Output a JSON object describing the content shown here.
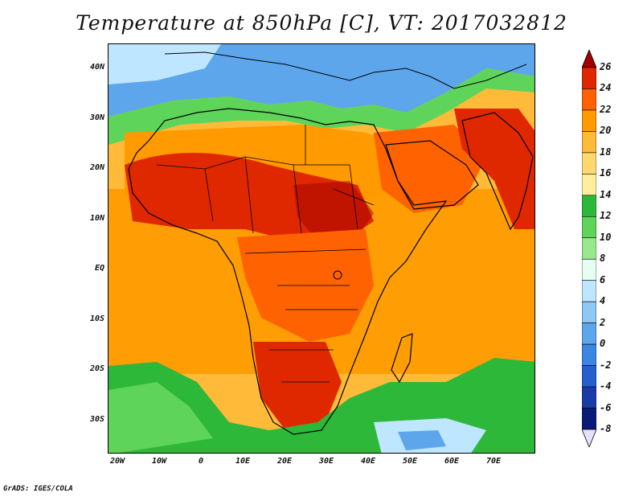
{
  "title": "Temperature at 850hPa [C], VT: 2017032812",
  "credit": "GrADS: IGES/COLA",
  "lat_labels": [
    "40N",
    "30N",
    "20N",
    "10N",
    "EQ",
    "10S",
    "20S",
    "30S"
  ],
  "lon_labels": [
    "20W",
    "10W",
    "0",
    "10E",
    "20E",
    "30E",
    "40E",
    "50E",
    "60E",
    "70E"
  ],
  "colorbar": {
    "labels": [
      "26",
      "24",
      "22",
      "20",
      "18",
      "16",
      "14",
      "12",
      "10",
      "8",
      "6",
      "4",
      "2",
      "0",
      "-2",
      "-4",
      "-6",
      "-8"
    ],
    "colors": [
      "#a00000",
      "#e02800",
      "#ff6200",
      "#ff9a00",
      "#ffba3a",
      "#ffd870",
      "#ffee9e",
      "#2eb83a",
      "#5ed45a",
      "#9ae88e",
      "#e6fff0",
      "#bfe6ff",
      "#8ec8f4",
      "#5ea6ec",
      "#3a86e0",
      "#2460cc",
      "#1a3aa8",
      "#0a1a78",
      "#e8e0ff"
    ]
  },
  "map_colors": {
    "ocean_warm": "#ffba3a",
    "land_hot": "#e02800",
    "north_cool": "#5ea6ec",
    "south_cool": "#2eb83a"
  }
}
